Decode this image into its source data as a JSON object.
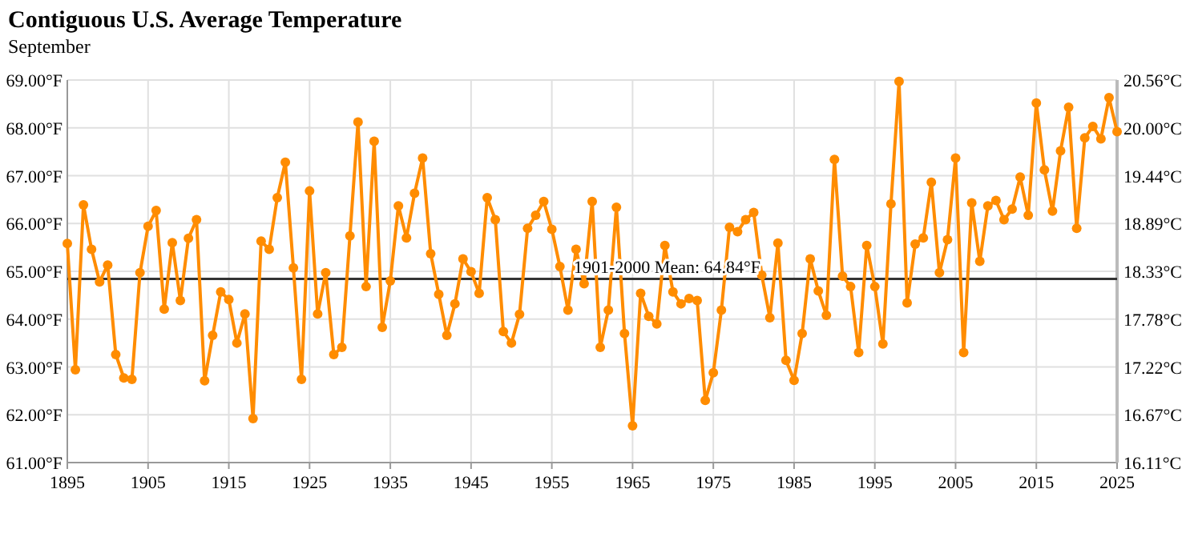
{
  "chart_data": {
    "type": "line",
    "title": "Contiguous U.S. Average Temperature",
    "subtitle": "September",
    "x": [
      1895,
      1896,
      1897,
      1898,
      1899,
      1900,
      1901,
      1902,
      1903,
      1904,
      1905,
      1906,
      1907,
      1908,
      1909,
      1910,
      1911,
      1912,
      1913,
      1914,
      1915,
      1916,
      1917,
      1918,
      1919,
      1920,
      1921,
      1922,
      1923,
      1924,
      1925,
      1926,
      1927,
      1928,
      1929,
      1930,
      1931,
      1932,
      1933,
      1934,
      1935,
      1936,
      1937,
      1938,
      1939,
      1940,
      1941,
      1942,
      1943,
      1944,
      1945,
      1946,
      1947,
      1948,
      1949,
      1950,
      1951,
      1952,
      1953,
      1954,
      1955,
      1956,
      1957,
      1958,
      1959,
      1960,
      1961,
      1962,
      1963,
      1964,
      1965,
      1966,
      1967,
      1968,
      1969,
      1970,
      1971,
      1972,
      1973,
      1974,
      1975,
      1976,
      1977,
      1978,
      1979,
      1980,
      1981,
      1982,
      1983,
      1984,
      1985,
      1986,
      1987,
      1988,
      1989,
      1990,
      1991,
      1992,
      1993,
      1994,
      1995,
      1996,
      1997,
      1998,
      1999,
      2000,
      2001,
      2002,
      2003,
      2004,
      2005,
      2006,
      2007,
      2008,
      2009,
      2010,
      2011,
      2012,
      2013,
      2014,
      2015,
      2016,
      2017,
      2018,
      2019,
      2020,
      2021,
      2022,
      2023,
      2024,
      2025
    ],
    "series": [
      {
        "color": "#ff8c00",
        "values": [
          65.58,
          62.94,
          66.39,
          65.46,
          64.78,
          65.13,
          63.26,
          62.77,
          62.74,
          64.97,
          65.94,
          66.27,
          64.21,
          65.6,
          64.39,
          65.69,
          66.08,
          62.71,
          63.66,
          64.57,
          64.41,
          63.5,
          64.11,
          61.92,
          65.63,
          65.46,
          66.54,
          67.28,
          65.07,
          62.74,
          66.68,
          64.11,
          64.97,
          63.26,
          63.41,
          65.74,
          68.12,
          64.68,
          67.72,
          63.83,
          64.8,
          66.37,
          65.7,
          66.63,
          67.37,
          65.37,
          64.52,
          63.66,
          64.32,
          65.26,
          64.99,
          64.54,
          66.54,
          66.08,
          63.74,
          63.5,
          64.1,
          65.9,
          66.17,
          66.46,
          65.88,
          65.1,
          64.19,
          65.46,
          64.74,
          66.46,
          63.41,
          64.19,
          66.34,
          63.7,
          61.77,
          64.54,
          64.06,
          63.9,
          65.54,
          64.57,
          64.32,
          64.43,
          64.39,
          62.3,
          62.88,
          64.19,
          65.92,
          65.83,
          66.08,
          66.23,
          64.92,
          64.03,
          65.59,
          63.14,
          62.72,
          63.7,
          65.26,
          64.59,
          64.08,
          67.34,
          64.9,
          64.68,
          63.3,
          65.54,
          64.68,
          63.48,
          66.41,
          68.97,
          64.34,
          65.57,
          65.7,
          66.86,
          64.97,
          65.66,
          67.37,
          63.3,
          66.43,
          65.21,
          66.37,
          66.48,
          66.08,
          66.3,
          66.97,
          66.17,
          68.52,
          67.12,
          66.26,
          67.52,
          68.43,
          65.9,
          67.79,
          68.03,
          67.77,
          68.63,
          67.92
        ]
      }
    ],
    "xlim": [
      1895,
      2025
    ],
    "xticks": [
      1895,
      1905,
      1915,
      1925,
      1935,
      1945,
      1955,
      1965,
      1975,
      1985,
      1995,
      2005,
      2015,
      2025
    ],
    "ylim": [
      61,
      69
    ],
    "yticks": [
      {
        "value": 61,
        "label": "61.00°F"
      },
      {
        "value": 62,
        "label": "62.00°F"
      },
      {
        "value": 63,
        "label": "63.00°F"
      },
      {
        "value": 64,
        "label": "64.00°F"
      },
      {
        "value": 65,
        "label": "65.00°F"
      },
      {
        "value": 66,
        "label": "66.00°F"
      },
      {
        "value": 67,
        "label": "67.00°F"
      },
      {
        "value": 68,
        "label": "68.00°F"
      },
      {
        "value": 69,
        "label": "69.00°F"
      }
    ],
    "y2lim": [
      16.111,
      20.556
    ],
    "y2ticks": [
      {
        "value": 16.111,
        "label": "16.11°C"
      },
      {
        "value": 16.667,
        "label": "16.67°C"
      },
      {
        "value": 17.222,
        "label": "17.22°C"
      },
      {
        "value": 17.778,
        "label": "17.78°C"
      },
      {
        "value": 18.333,
        "label": "18.33°C"
      },
      {
        "value": 18.889,
        "label": "18.89°C"
      },
      {
        "value": 19.444,
        "label": "19.44°C"
      },
      {
        "value": 20,
        "label": "20.00°C"
      },
      {
        "value": 20.556,
        "label": "20.56°C"
      }
    ],
    "ref_lines": [
      {
        "axis": "y",
        "value": 64.84,
        "label": "1901-2000 Mean: 64.84°F",
        "color": "#333333"
      }
    ],
    "grid": true,
    "marker": "circle",
    "line_style": "solid"
  }
}
